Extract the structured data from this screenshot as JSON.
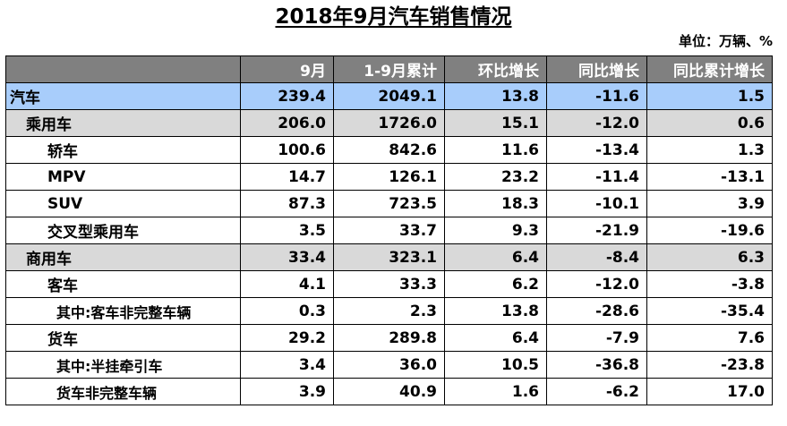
{
  "title": "2018年9月汽车销售情况",
  "unit": "单位：万辆、%",
  "headers": [
    "",
    "9月",
    "1-9月累计",
    "环比增长",
    "同比增长",
    "同比累计增长"
  ],
  "rows": [
    {
      "label": "汽车",
      "values": [
        "239.4",
        "2049.1",
        "13.8",
        "-11.6",
        "1.5"
      ]
    },
    {
      "label": "乘用车",
      "values": [
        "206.0",
        "1726.0",
        "15.1",
        "-12.0",
        "0.6"
      ]
    },
    {
      "label": "轿车",
      "values": [
        "100.6",
        "842.6",
        "11.6",
        "-13.4",
        "1.3"
      ]
    },
    {
      "label": "MPV",
      "values": [
        "14.7",
        "126.1",
        "23.2",
        "-11.4",
        "-13.1"
      ]
    },
    {
      "label": "SUV",
      "values": [
        "87.3",
        "723.5",
        "18.3",
        "-10.1",
        "3.9"
      ]
    },
    {
      "label": "交叉型乘用车",
      "values": [
        "3.5",
        "33.7",
        "9.3",
        "-21.9",
        "-19.6"
      ]
    },
    {
      "label": "商用车",
      "values": [
        "33.4",
        "323.1",
        "6.4",
        "-8.4",
        "6.3"
      ]
    },
    {
      "label": "客车",
      "values": [
        "4.1",
        "33.3",
        "6.2",
        "-12.0",
        "-3.8"
      ]
    },
    {
      "label": "其中:客车非完整车辆",
      "values": [
        "0.3",
        "2.3",
        "13.8",
        "-28.6",
        "-35.4"
      ]
    },
    {
      "label": "货车",
      "values": [
        "29.2",
        "289.8",
        "6.4",
        "-7.9",
        "7.6"
      ]
    },
    {
      "label": "其中:半挂牵引车",
      "values": [
        "3.4",
        "36.0",
        "10.5",
        "-36.8",
        "-23.8"
      ]
    },
    {
      "label": "货车非完整车辆",
      "values": [
        "3.9",
        "40.9",
        "1.6",
        "-6.2",
        "17.0"
      ]
    }
  ],
  "colors": {
    "header_bg": "#808080",
    "total_row_bg": "#a8cdfb",
    "category_row_bg": "#d9d9d9",
    "body_bg": "#ffffff"
  }
}
